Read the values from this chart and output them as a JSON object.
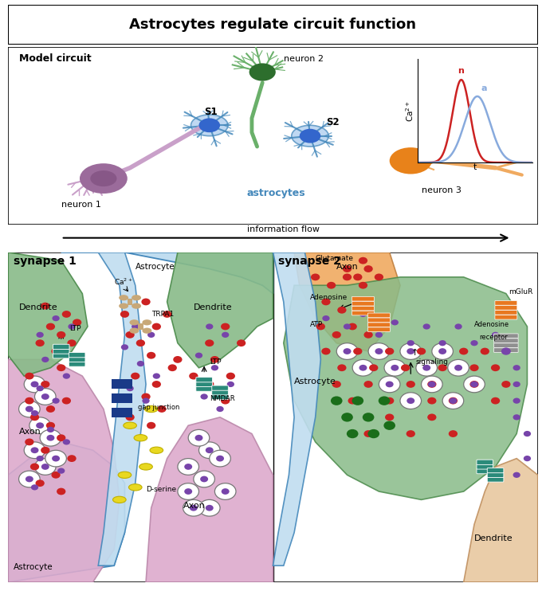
{
  "title": "Astrocytes regulate circuit function",
  "top_panel_label": "Model circuit",
  "inset_ylabel": "Ca2+",
  "inset_xlabel": "t",
  "inset_n_label": "n",
  "inset_a_label": "a",
  "arrow_label": "information flow",
  "synapse1_label": "synapse 1",
  "synapse2_label": "synapse 2",
  "neuron1_label": "neuron 1",
  "neuron2_label": "neuron 2",
  "neuron3_label": "neuron 3",
  "astrocytes_label": "astrocytes",
  "s1_label": "S1",
  "s2_label": "S2",
  "colors": {
    "neuron1_soma": "#9b6b9b",
    "neuron1_body": "#c9a0c9",
    "neuron1_axon": "#c9a0c9",
    "neuron2_soma": "#2d6e2d",
    "neuron2_body": "#6ab06a",
    "neuron3_soma": "#e8821a",
    "neuron3_body": "#f0aa60",
    "astrocyte_body": "#aaccee",
    "astrocyte_border": "#4488bb",
    "dendrite_green": "#88bb88",
    "dendrite_green_edge": "#4a8a4a",
    "axon_pink": "#ddaacc",
    "axon_pink_edge": "#bb88aa",
    "astrocyte_fill": "#c0ddf0",
    "astrocyte_fill_edge": "#4488bb",
    "background": "#ffffff",
    "red_dot": "#cc2222",
    "purple_dot": "#7744aa",
    "yellow_blob": "#e8d820",
    "yellow_blob_edge": "#c0b000",
    "teal_receptor": "#2a8a7a",
    "gap_junction": "#1a3a88",
    "trpa1_color": "#c8a878",
    "orange_receptor": "#e87820",
    "gray_receptor": "#909090",
    "dark_green_dot": "#1a6e1a",
    "ca_curve_n": "#cc2222",
    "ca_curve_a": "#88aadd"
  }
}
